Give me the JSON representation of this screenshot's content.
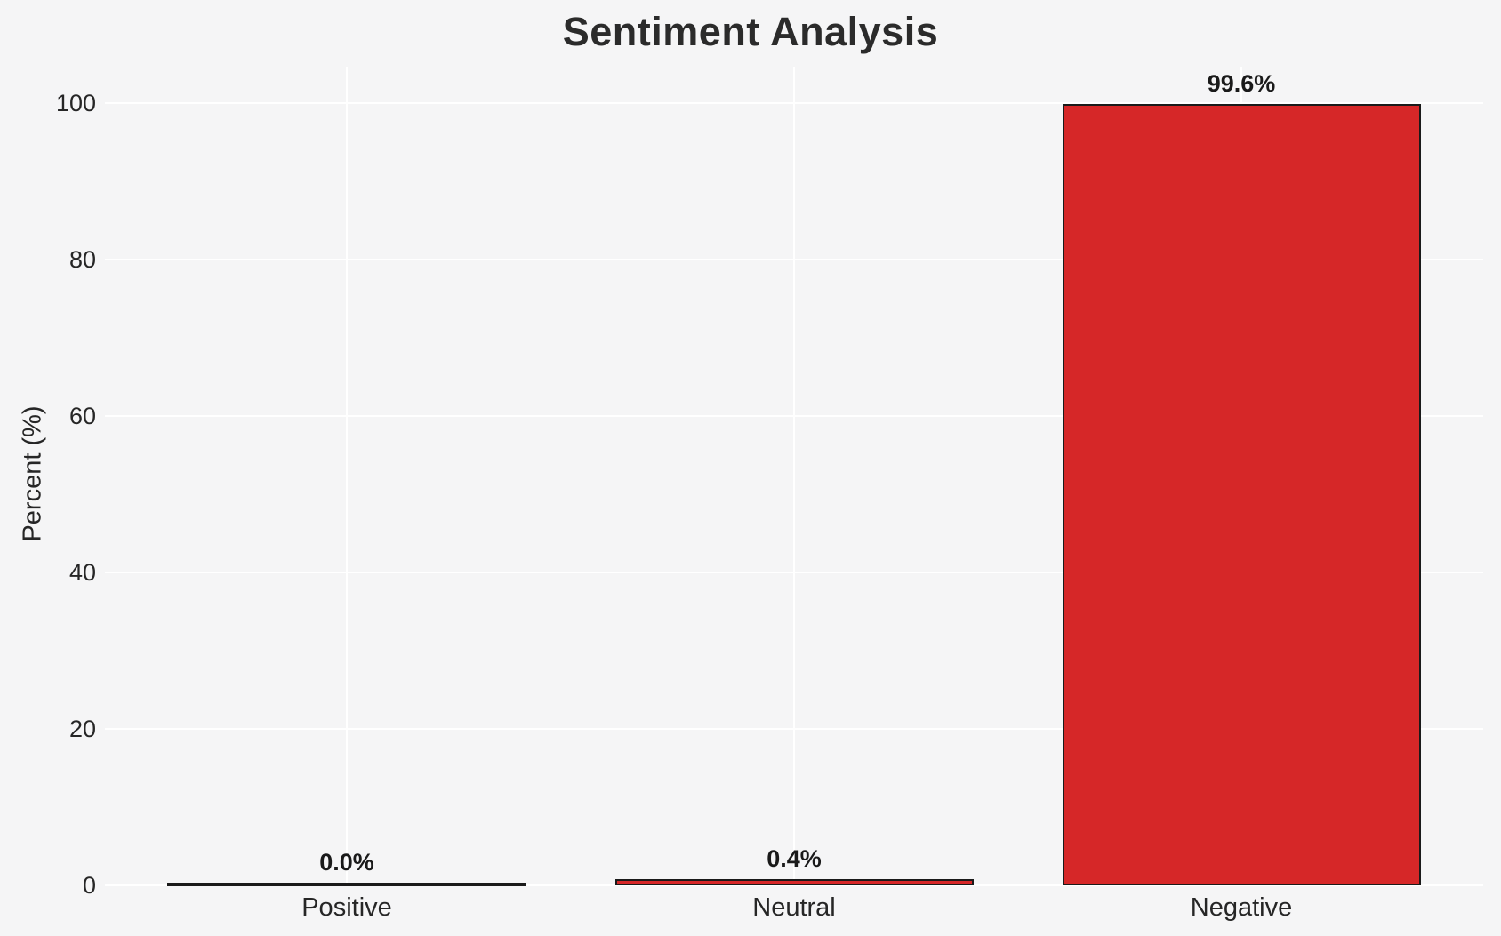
{
  "chart_data": {
    "type": "bar",
    "title": "Sentiment Analysis",
    "xlabel": "",
    "ylabel": "Percent (%)",
    "categories": [
      "Positive",
      "Neutral",
      "Negative"
    ],
    "values": [
      0.0,
      0.4,
      99.6
    ],
    "value_labels": [
      "0.0%",
      "0.4%",
      "99.6%"
    ],
    "yticks": [
      0,
      20,
      40,
      60,
      80,
      100
    ],
    "ylim": [
      0,
      104.7
    ],
    "grid": true,
    "legend_position": "none",
    "colors": {
      "background": "#f5f5f6",
      "gridline": "#ffffff",
      "bar_fill": "#d62728",
      "bar_edge": "#1a1a1a",
      "text": "#262626"
    }
  }
}
